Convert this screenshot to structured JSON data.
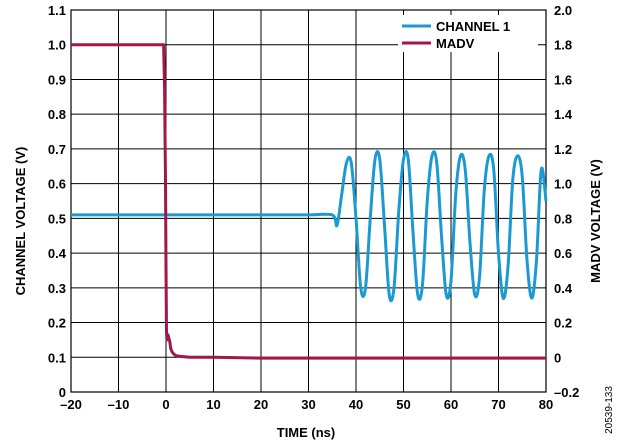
{
  "chart_data": {
    "type": "line",
    "title": "",
    "xlabel": "TIME (ns)",
    "ylabel": "CHANNEL VOLTAGE (V)",
    "y2label": "MADV VOLTAGE (V)",
    "xlim": [
      -20,
      80
    ],
    "ylim": [
      0,
      1.1
    ],
    "y2lim": [
      -0.2,
      2.0
    ],
    "x_ticks": [
      "–20",
      "–10",
      "0",
      "10",
      "20",
      "30",
      "40",
      "50",
      "60",
      "70",
      "80"
    ],
    "y_ticks": [
      "0",
      "0.1",
      "0.2",
      "0.3",
      "0.4",
      "0.5",
      "0.6",
      "0.7",
      "0.8",
      "0.9",
      "1.0",
      "1.1"
    ],
    "y2_ticks": [
      "–0.2",
      "0",
      "0.2",
      "0.4",
      "0.6",
      "0.8",
      "1.0",
      "1.2",
      "1.4",
      "1.6",
      "1.8",
      "2.0"
    ],
    "grid": true,
    "legend_position": "top-right",
    "figure_id": "20539-133",
    "colors": {
      "CHANNEL 1": "#1b9ad2",
      "MADV": "#a3154b"
    },
    "series": [
      {
        "name": "CHANNEL 1",
        "axis": "left",
        "x": [
          -20,
          -10,
          0,
          10,
          20,
          30,
          35,
          36,
          37,
          38,
          39,
          40,
          41,
          42,
          43,
          44,
          45,
          46,
          47,
          48,
          49,
          50,
          51,
          52,
          53,
          54,
          55,
          56,
          57,
          58,
          59,
          60,
          61,
          62,
          63,
          64,
          65,
          66,
          67,
          68,
          69,
          70,
          71,
          72,
          73,
          74,
          75,
          76,
          77,
          78,
          79,
          80
        ],
        "y": [
          0.51,
          0.51,
          0.51,
          0.51,
          0.51,
          0.51,
          0.51,
          0.48,
          0.57,
          0.66,
          0.66,
          0.5,
          0.3,
          0.3,
          0.5,
          0.67,
          0.67,
          0.48,
          0.28,
          0.3,
          0.52,
          0.67,
          0.67,
          0.46,
          0.28,
          0.31,
          0.55,
          0.68,
          0.66,
          0.45,
          0.28,
          0.32,
          0.57,
          0.68,
          0.64,
          0.43,
          0.28,
          0.33,
          0.58,
          0.68,
          0.64,
          0.4,
          0.27,
          0.36,
          0.61,
          0.68,
          0.62,
          0.38,
          0.27,
          0.38,
          0.64,
          0.55
        ]
      },
      {
        "name": "MADV",
        "axis": "right",
        "x": [
          -20,
          -0.5,
          -0.3,
          -0.1,
          0,
          0.1,
          0.2,
          0.4,
          0.6,
          0.8,
          1,
          1.3,
          1.6,
          2,
          3,
          5,
          10,
          20,
          40,
          60,
          80
        ],
        "y": [
          1.8,
          1.8,
          1.55,
          1.0,
          0.52,
          0.15,
          0.1,
          0.13,
          0.11,
          0.09,
          0.05,
          0.03,
          0.02,
          0.01,
          0.005,
          0.0,
          0.0,
          -0.005,
          -0.005,
          -0.005,
          -0.005
        ]
      }
    ]
  }
}
